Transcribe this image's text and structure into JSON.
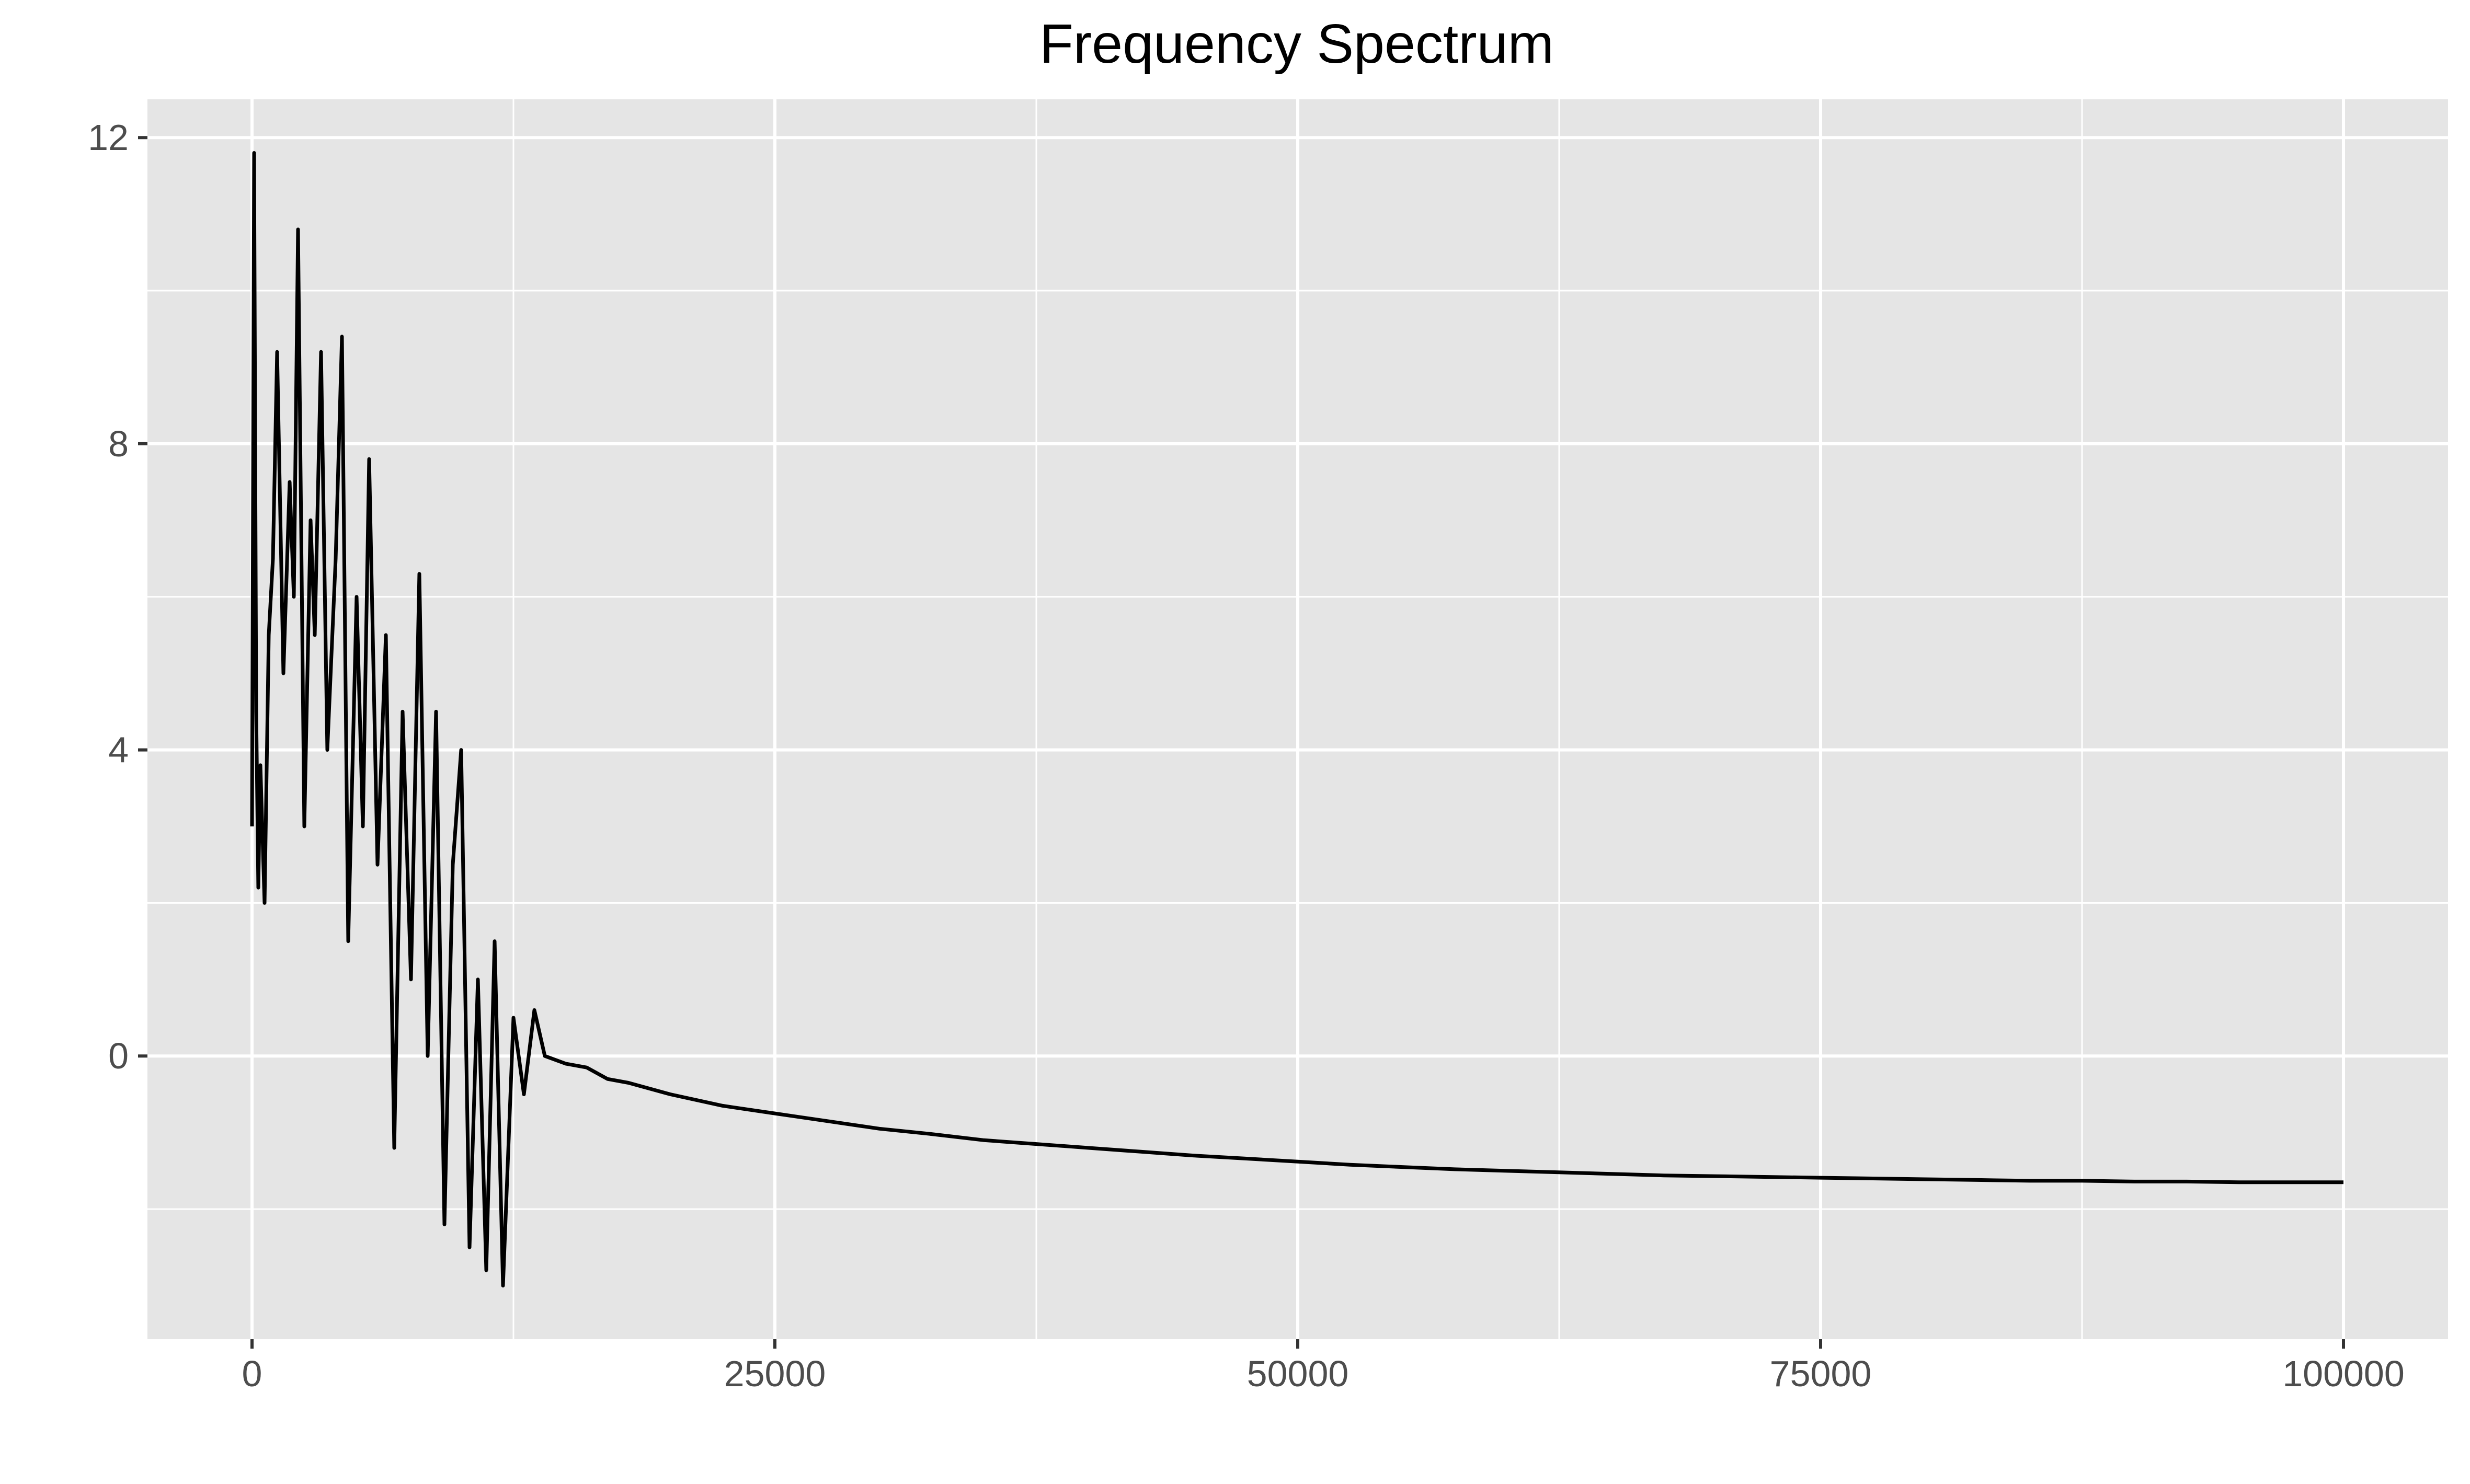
{
  "chart_data": {
    "type": "line",
    "title": "Frequency Spectrum",
    "xlabel": "",
    "ylabel": "",
    "xlim": [
      -5000,
      105000
    ],
    "ylim": [
      -3.7,
      12.5
    ],
    "x_ticks": [
      0,
      25000,
      50000,
      75000,
      100000
    ],
    "x_tick_labels": [
      "0",
      "25000",
      "50000",
      "75000",
      "100000"
    ],
    "y_ticks": [
      0,
      4,
      8,
      12
    ],
    "y_tick_labels": [
      "0",
      "4",
      "8",
      "12"
    ],
    "x_minor_ticks": [
      12500,
      37500,
      62500,
      87500
    ],
    "y_minor_ticks": [
      -2,
      2,
      6,
      10
    ],
    "grid": true,
    "legend": "none",
    "colors": {
      "panel_background": "#e5e5e5",
      "grid": "#ffffff",
      "line": "#000000",
      "tick_text": "#4d4d4d",
      "axis_tick": "#333333"
    },
    "series": [
      {
        "values_description_note": "",
        "x": [
          0,
          100,
          200,
          300,
          400,
          600,
          800,
          1000,
          1200,
          1500,
          1800,
          2000,
          2200,
          2500,
          2800,
          3000,
          3300,
          3600,
          4000,
          4300,
          4600,
          5000,
          5300,
          5600,
          6000,
          6400,
          6800,
          7200,
          7600,
          8000,
          8400,
          8800,
          9200,
          9600,
          10000,
          10400,
          10800,
          11200,
          11600,
          12000,
          12500,
          13000,
          13500,
          14000,
          15000,
          16000,
          17000,
          18000,
          20000,
          22500,
          25000,
          27500,
          30000,
          32500,
          35000,
          37500,
          40000,
          42500,
          45000,
          47500,
          50000,
          52500,
          55000,
          57500,
          60000,
          62500,
          65000,
          67500,
          70000,
          72500,
          75000,
          77500,
          80000,
          82500,
          85000,
          87500,
          90000,
          92500,
          95000,
          97500,
          100000
        ],
        "y": [
          3.0,
          11.8,
          4.5,
          2.2,
          3.8,
          2.0,
          5.5,
          6.5,
          9.2,
          5.0,
          7.5,
          6.0,
          10.8,
          3.0,
          7.0,
          5.5,
          9.2,
          4.0,
          6.5,
          9.4,
          1.5,
          6.0,
          3.0,
          7.8,
          2.5,
          5.5,
          -1.2,
          4.5,
          1.0,
          6.3,
          0.0,
          4.5,
          -2.2,
          2.5,
          4.0,
          -2.5,
          1.0,
          -2.8,
          1.5,
          -3.0,
          0.5,
          -0.5,
          0.6,
          0.0,
          -0.1,
          -0.15,
          -0.3,
          -0.35,
          -0.5,
          -0.65,
          -0.75,
          -0.85,
          -0.95,
          -1.02,
          -1.1,
          -1.15,
          -1.2,
          -1.25,
          -1.3,
          -1.34,
          -1.38,
          -1.42,
          -1.45,
          -1.48,
          -1.5,
          -1.52,
          -1.54,
          -1.56,
          -1.57,
          -1.58,
          -1.59,
          -1.6,
          -1.61,
          -1.62,
          -1.63,
          -1.63,
          -1.64,
          -1.64,
          -1.65,
          -1.65,
          -1.65
        ]
      }
    ]
  }
}
